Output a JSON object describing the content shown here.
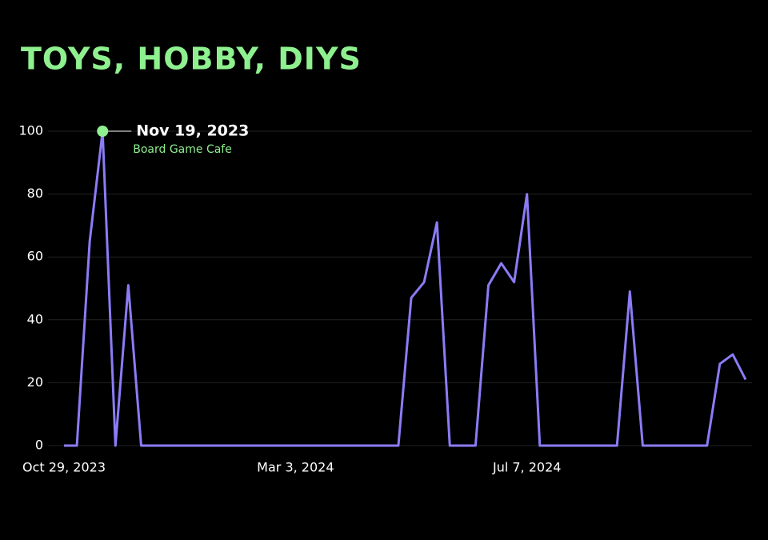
{
  "chart_data": {
    "type": "line",
    "title": "TOYS, HOBBY, DIYS",
    "title_color": "#8ef08e",
    "x": [
      "2023-10-29",
      "2023-11-05",
      "2023-11-12",
      "2023-11-19",
      "2023-11-26",
      "2023-12-03",
      "2023-12-10",
      "2023-12-17",
      "2023-12-24",
      "2023-12-31",
      "2024-01-07",
      "2024-01-14",
      "2024-01-21",
      "2024-01-28",
      "2024-02-04",
      "2024-02-11",
      "2024-02-18",
      "2024-02-25",
      "2024-03-03",
      "2024-03-10",
      "2024-03-17",
      "2024-03-24",
      "2024-03-31",
      "2024-04-07",
      "2024-04-14",
      "2024-04-21",
      "2024-04-28",
      "2024-05-05",
      "2024-05-12",
      "2024-05-19",
      "2024-05-26",
      "2024-06-02",
      "2024-06-09",
      "2024-06-16",
      "2024-06-23",
      "2024-06-30",
      "2024-07-07",
      "2024-07-14",
      "2024-07-21",
      "2024-07-28",
      "2024-08-04",
      "2024-08-11",
      "2024-08-18",
      "2024-08-25",
      "2024-09-01",
      "2024-09-08",
      "2024-09-15",
      "2024-09-22",
      "2024-09-29",
      "2024-10-06",
      "2024-10-13",
      "2024-10-20",
      "2024-10-27",
      "2024-11-03"
    ],
    "series": [
      {
        "color": "#8b7cf6",
        "values": [
          0,
          0,
          65,
          100,
          0,
          51,
          0,
          0,
          0,
          0,
          0,
          0,
          0,
          0,
          0,
          0,
          0,
          0,
          0,
          0,
          0,
          0,
          0,
          0,
          0,
          0,
          0,
          47,
          52,
          71,
          0,
          0,
          0,
          51,
          58,
          52,
          80,
          0,
          0,
          0,
          0,
          0,
          0,
          0,
          49,
          0,
          0,
          0,
          0,
          0,
          0,
          26,
          29,
          21
        ]
      }
    ],
    "xlim": [
      "2023-10-29",
      "2024-11-03"
    ],
    "xticks": [
      {
        "value": "2023-10-29",
        "label": "Oct 29, 2023"
      },
      {
        "value": "2024-03-03",
        "label": "Mar 3, 2024"
      },
      {
        "value": "2024-07-07",
        "label": "Jul 7, 2024"
      }
    ],
    "ylim": [
      0,
      100
    ],
    "yticks": [
      0,
      20,
      40,
      60,
      80,
      100
    ],
    "grid": true,
    "annotation": {
      "x": "2023-11-19",
      "y": 100,
      "label": "Nov 19, 2023",
      "text": "Board Game Cafe",
      "color": "#8ef08e"
    }
  }
}
